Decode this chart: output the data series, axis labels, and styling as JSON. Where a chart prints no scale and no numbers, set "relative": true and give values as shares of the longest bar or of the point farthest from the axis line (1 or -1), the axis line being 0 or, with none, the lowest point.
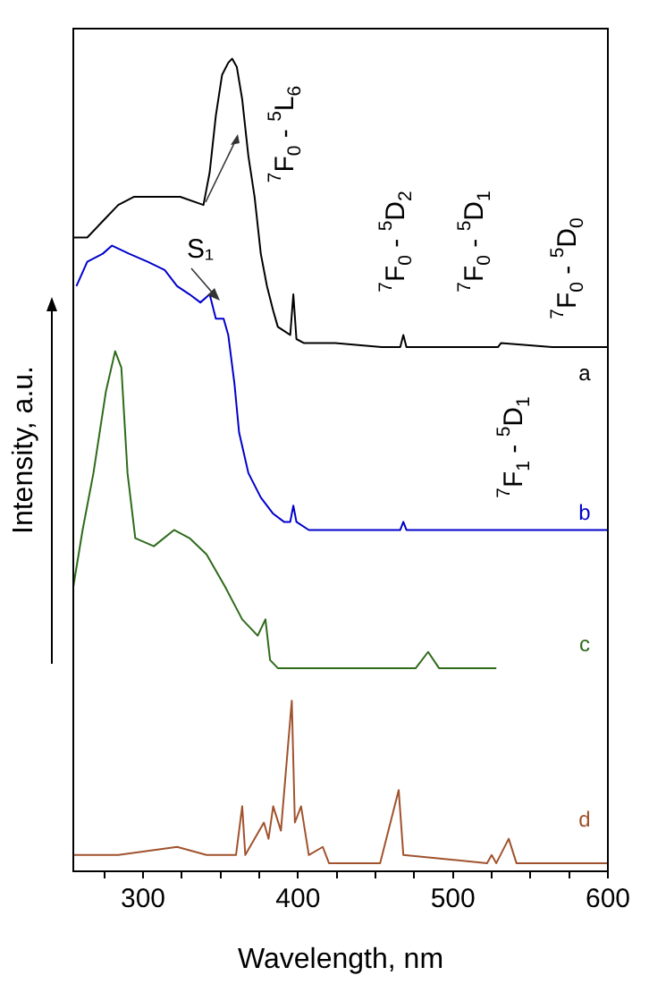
{
  "chart_data": {
    "type": "line",
    "relative": true,
    "xlabel": "Wavelength, nm",
    "ylabel": "Intensity, a.u.",
    "xlim": [
      255,
      600
    ],
    "xticks": [
      {
        "value": 275,
        "label": null
      },
      300,
      {
        "value": 325,
        "label": null
      },
      {
        "value": 350,
        "label": null
      },
      {
        "value": 375,
        "label": null
      },
      400,
      {
        "value": 425,
        "label": null
      },
      {
        "value": 450,
        "label": null
      },
      {
        "value": 475,
        "label": null
      },
      500,
      {
        "value": 525,
        "label": null
      },
      {
        "value": 550,
        "label": null
      },
      {
        "value": 575,
        "label": null
      },
      600
    ],
    "tick_labels": "x",
    "series": [
      {
        "name": "a",
        "color": "#000000",
        "x": [
          255,
          264,
          274,
          284,
          294,
          304,
          324,
          339,
          343,
          347,
          351,
          355,
          357.5,
          360.5,
          364,
          368,
          372,
          376,
          380,
          384,
          387,
          391,
          395,
          397,
          399,
          404,
          424,
          454,
          466,
          468,
          470,
          504,
          529,
          531,
          564,
          600
        ],
        "values": [
          0.78,
          0.78,
          0.8,
          0.82,
          0.83,
          0.83,
          0.83,
          0.82,
          0.86,
          0.93,
          0.98,
          0.995,
          1,
          0.99,
          0.95,
          0.88,
          0.83,
          0.76,
          0.72,
          0.69,
          0.67,
          0.665,
          0.66,
          0.71,
          0.655,
          0.65,
          0.65,
          0.645,
          0.645,
          0.66,
          0.645,
          0.645,
          0.645,
          0.65,
          0.645,
          0.645
        ]
      },
      {
        "name": "b",
        "color": "#0000cc",
        "x": [
          257,
          264,
          274,
          280,
          291,
          303,
          314,
          322,
          330,
          337,
          343,
          347,
          352,
          355,
          359,
          362,
          368,
          376,
          384,
          391,
          395,
          397,
          399,
          407,
          440,
          466,
          468,
          470,
          600
        ],
        "values": [
          0.72,
          0.75,
          0.76,
          0.77,
          0.76,
          0.75,
          0.74,
          0.72,
          0.71,
          0.7,
          0.71,
          0.68,
          0.68,
          0.66,
          0.6,
          0.54,
          0.49,
          0.46,
          0.44,
          0.43,
          0.43,
          0.45,
          0.43,
          0.42,
          0.42,
          0.42,
          0.43,
          0.42,
          0.42
        ]
      },
      {
        "name": "c",
        "color": "#2e6b1a",
        "x": [
          255,
          261,
          268,
          276,
          282,
          286,
          290,
          295,
          307,
          320,
          330,
          341,
          353,
          364,
          374,
          379,
          382,
          387,
          437,
          476,
          484,
          491,
          528
        ],
        "values": [
          0.35,
          0.42,
          0.49,
          0.59,
          0.64,
          0.62,
          0.49,
          0.41,
          0.4,
          0.42,
          0.41,
          0.39,
          0.35,
          0.31,
          0.29,
          0.31,
          0.26,
          0.25,
          0.25,
          0.25,
          0.27,
          0.25,
          0.25
        ]
      },
      {
        "name": "d",
        "color": "#a0522d",
        "x": [
          255,
          284,
          322,
          341,
          360,
          364,
          366,
          378,
          381,
          384,
          389,
          396,
          398,
          402,
          407,
          416,
          420,
          453,
          465,
          468,
          522,
          525,
          528,
          536,
          541,
          600
        ],
        "values": [
          0.02,
          0.02,
          0.03,
          0.02,
          0.02,
          0.08,
          0.02,
          0.06,
          0.04,
          0.08,
          0.05,
          0.21,
          0.06,
          0.08,
          0.02,
          0.03,
          0.01,
          0.01,
          0.1,
          0.02,
          0.01,
          0.02,
          0.01,
          0.04,
          0.01,
          0.01
        ]
      }
    ],
    "annotations": [
      "S₁",
      "$^{7}$F$_{0}$ - $^{5}$L$_{6}$",
      "$^{7}$F$_{0}$ - $^{5}$D$_{2}$",
      "$^{7}$F$_{0}$ - $^{5}$D$_{1}$",
      "$^{7}$F$_{0}$ - $^{5}$D$_{0}$",
      "$^{7}$F$_{1}$ - $^{5}$D$_{1}$"
    ]
  }
}
